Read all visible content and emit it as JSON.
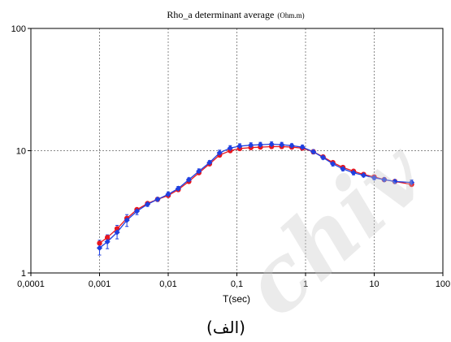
{
  "chart_data": {
    "type": "scatter",
    "title": "Rho_a  determinant average",
    "title_unit": "(Ohm.m)",
    "xlabel": "T(sec)",
    "ylabel": "",
    "x_scale": "log",
    "y_scale": "log",
    "xlim": [
      0.0001,
      100
    ],
    "ylim": [
      1,
      100
    ],
    "x_tick_labels": [
      "0,0001",
      "0,001",
      "0,01",
      "0,1",
      "1",
      "10",
      "100"
    ],
    "y_tick_labels": [
      "1",
      "10",
      "100"
    ],
    "grid": true,
    "series": [
      {
        "color": "#e8161e",
        "marker": "circle",
        "x": [
          0.001,
          0.0013,
          0.0018,
          0.0025,
          0.0035,
          0.005,
          0.007,
          0.01,
          0.014,
          0.02,
          0.028,
          0.04,
          0.056,
          0.08,
          0.11,
          0.16,
          0.22,
          0.32,
          0.45,
          0.63,
          0.9,
          1.3,
          1.8,
          2.5,
          3.5,
          5,
          7,
          10,
          14,
          20,
          35
        ],
        "y": [
          1.75,
          1.95,
          2.3,
          2.8,
          3.3,
          3.7,
          4.0,
          4.3,
          4.8,
          5.6,
          6.6,
          7.8,
          9.2,
          10.0,
          10.4,
          10.6,
          10.7,
          10.8,
          10.8,
          10.7,
          10.5,
          9.8,
          8.9,
          8.0,
          7.3,
          6.8,
          6.4,
          6.1,
          5.8,
          5.6,
          5.3
        ]
      },
      {
        "color": "#1f3fe0",
        "marker": "diamond",
        "x": [
          0.001,
          0.0013,
          0.0018,
          0.0025,
          0.0035,
          0.005,
          0.007,
          0.01,
          0.014,
          0.02,
          0.028,
          0.04,
          0.056,
          0.08,
          0.11,
          0.16,
          0.22,
          0.32,
          0.45,
          0.63,
          0.9,
          1.3,
          1.8,
          2.5,
          3.5,
          5,
          7,
          10,
          14,
          20,
          35
        ],
        "y": [
          1.6,
          1.8,
          2.15,
          2.7,
          3.2,
          3.65,
          4.0,
          4.4,
          4.9,
          5.8,
          6.8,
          8.0,
          9.6,
          10.5,
          10.9,
          11.1,
          11.2,
          11.3,
          11.2,
          11.0,
          10.7,
          9.8,
          8.8,
          7.8,
          7.1,
          6.6,
          6.3,
          6.0,
          5.8,
          5.6,
          5.5
        ],
        "err_high": [
          1.85,
          2.05,
          2.45,
          3.0,
          3.4,
          3.8,
          4.15,
          4.6,
          5.1,
          6.0,
          7.1,
          8.3,
          10.1,
          11.0,
          11.4,
          11.6,
          11.7,
          11.8,
          11.7,
          11.4,
          11.1,
          10.2,
          9.1,
          8.1,
          7.35,
          6.85,
          6.5,
          6.2,
          6.0,
          5.8,
          5.75
        ],
        "err_low": [
          1.4,
          1.58,
          1.9,
          2.4,
          3.0,
          3.5,
          3.85,
          4.2,
          4.7,
          5.6,
          6.5,
          7.7,
          9.1,
          10.0,
          10.4,
          10.6,
          10.7,
          10.8,
          10.7,
          10.6,
          10.3,
          9.4,
          8.5,
          7.5,
          6.85,
          6.35,
          6.1,
          5.8,
          5.6,
          5.4,
          5.25
        ]
      }
    ]
  },
  "caption": "(الف)",
  "watermark": "chiv"
}
